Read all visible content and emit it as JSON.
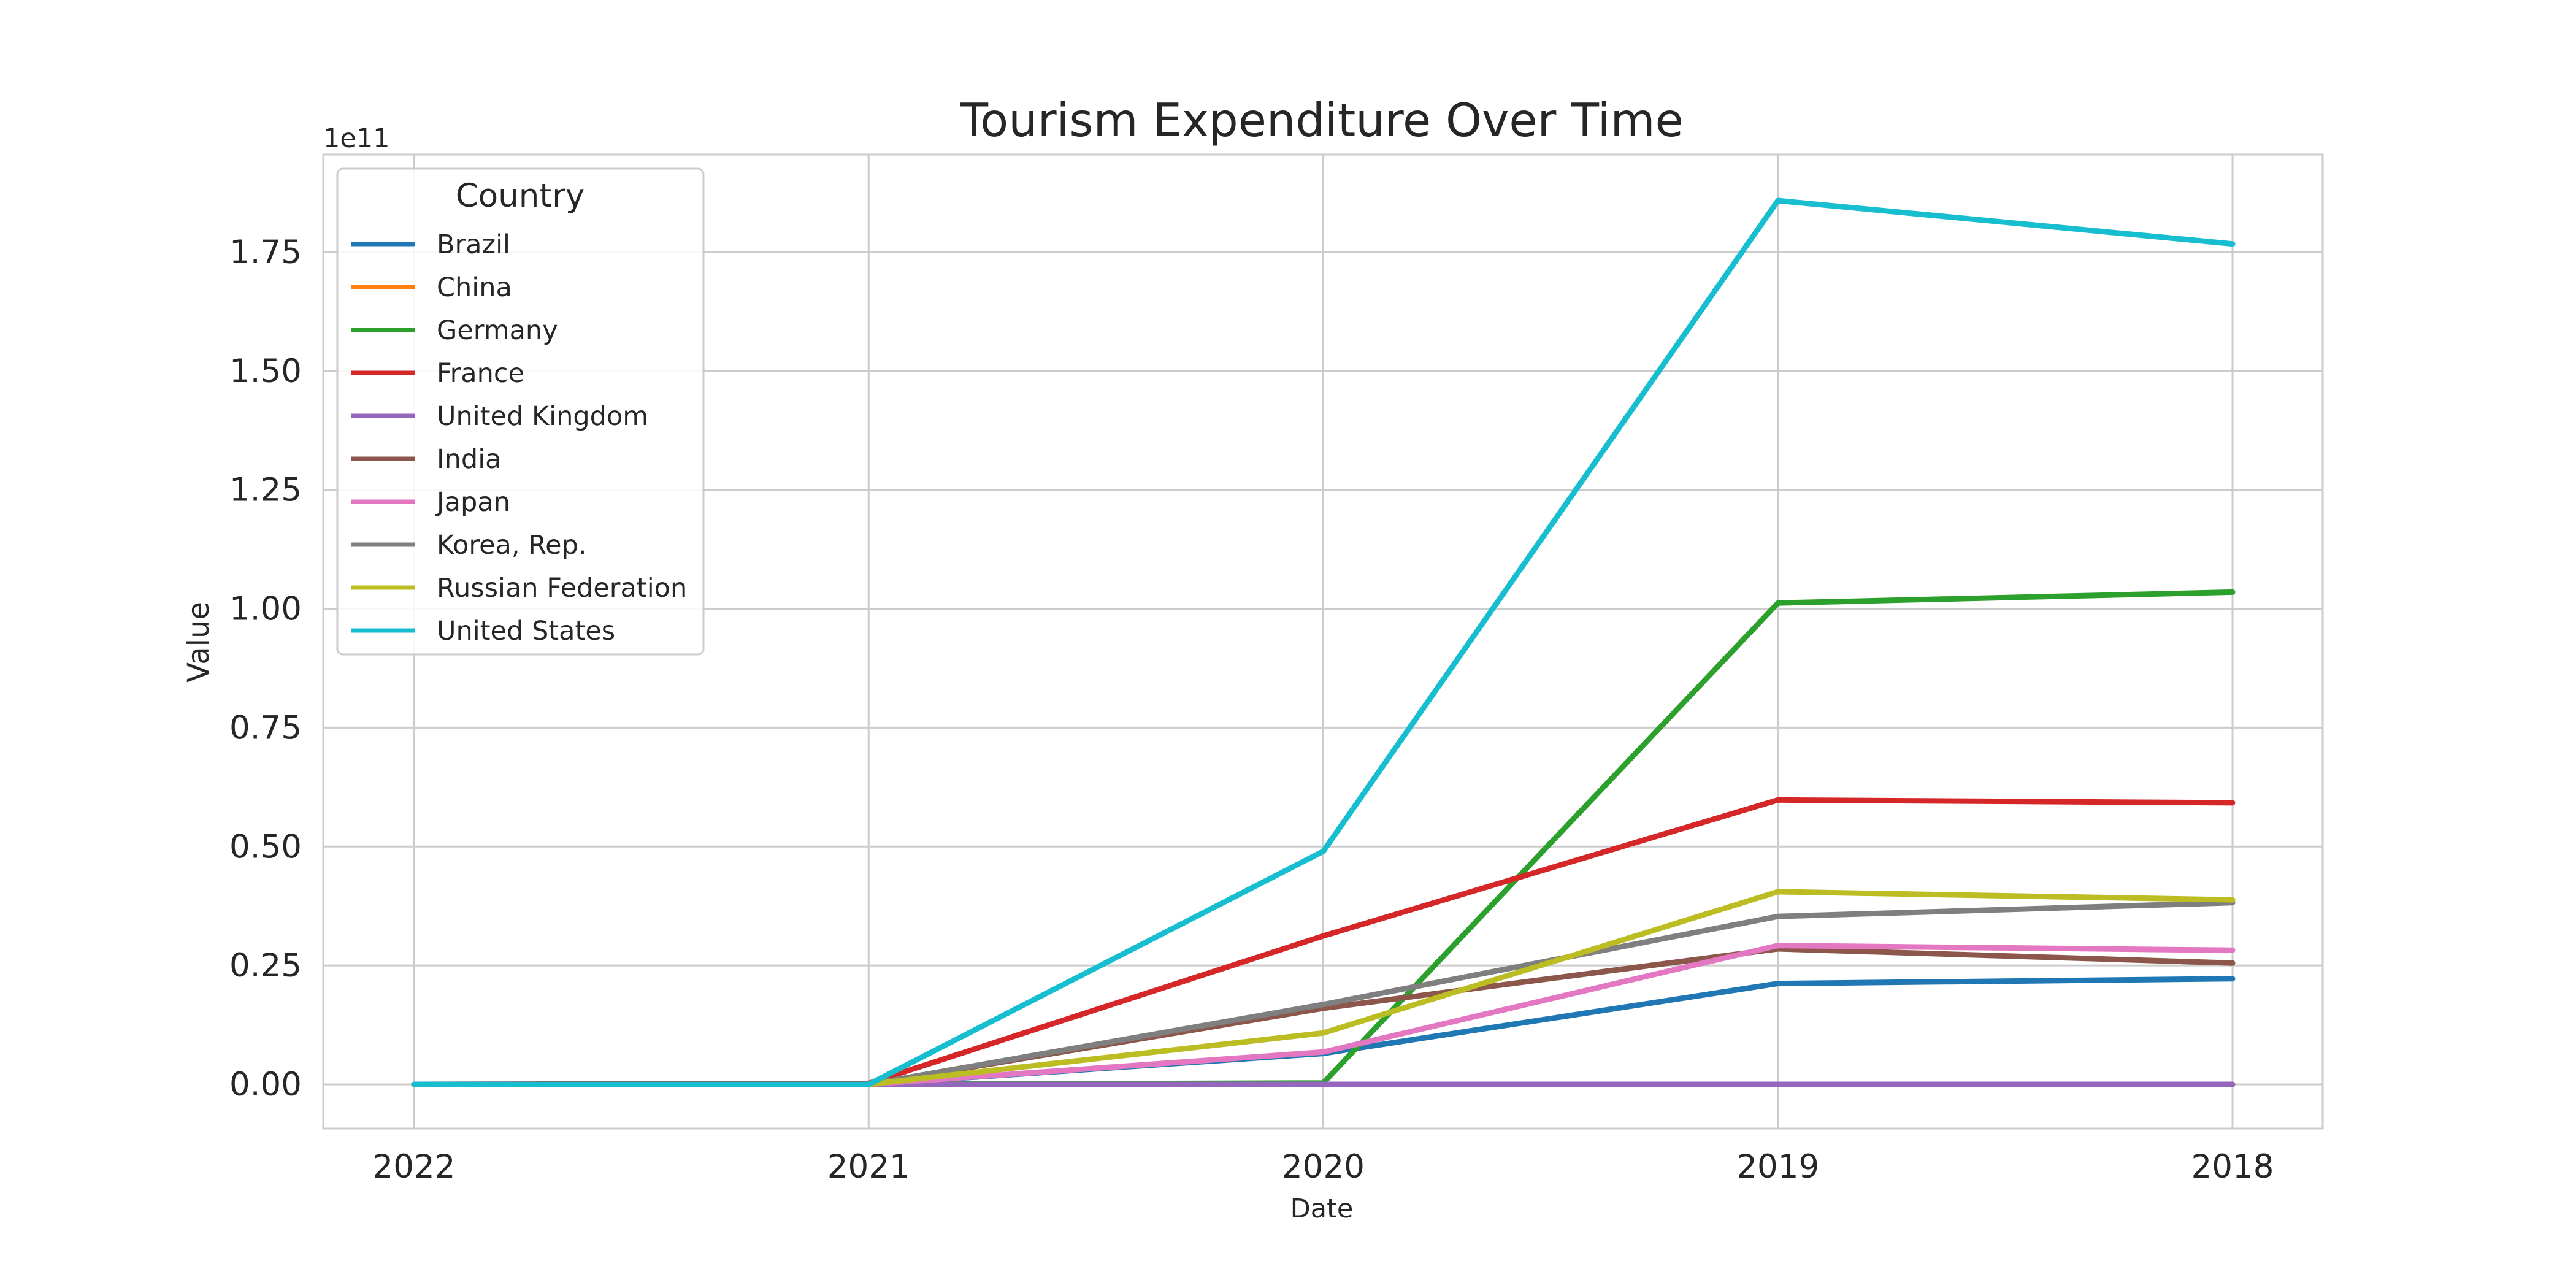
{
  "chart_data": {
    "type": "line",
    "title": "Tourism Expenditure Over Time",
    "xlabel": "Date",
    "ylabel": "Value",
    "y_offset_label": "1e11",
    "x": [
      "2022",
      "2021",
      "2020",
      "2019",
      "2018"
    ],
    "y_ticks": [
      0,
      0.25,
      0.5,
      0.75,
      1.0,
      1.25,
      1.5,
      1.75
    ],
    "y_tick_labels": [
      "0.00",
      "0.25",
      "0.50",
      "0.75",
      "1.00",
      "1.25",
      "1.50",
      "1.75"
    ],
    "ylim": [
      -0.09,
      1.95
    ],
    "y_multiplier": 100000000000.0,
    "grid": true,
    "legend": {
      "title": "Country",
      "position": "top-left"
    },
    "series": [
      {
        "name": "Brazil",
        "color": "#1f77b4",
        "values": [
          0,
          0,
          0.065,
          0.212,
          0.222
        ]
      },
      {
        "name": "China",
        "color": "#ff7f0e",
        "values": [
          0,
          0,
          0,
          0,
          0
        ]
      },
      {
        "name": "Germany",
        "color": "#2ca02c",
        "values": [
          0,
          0,
          0.003,
          1.012,
          1.035
        ]
      },
      {
        "name": "France",
        "color": "#d62728",
        "values": [
          0,
          0.002,
          0.312,
          0.598,
          0.592
        ]
      },
      {
        "name": "United Kingdom",
        "color": "#9467bd",
        "values": [
          0,
          0,
          0,
          0,
          0
        ]
      },
      {
        "name": "India",
        "color": "#8c564b",
        "values": [
          0,
          0,
          0.16,
          0.285,
          0.255
        ]
      },
      {
        "name": "Japan",
        "color": "#e377c2",
        "values": [
          0,
          0,
          0.068,
          0.292,
          0.282
        ]
      },
      {
        "name": "Korea, Rep.",
        "color": "#7f7f7f",
        "values": [
          0,
          0,
          0.168,
          0.353,
          0.382
        ]
      },
      {
        "name": "Russian Federation",
        "color": "#bcbd22",
        "values": [
          0,
          0,
          0.108,
          0.405,
          0.388
        ]
      },
      {
        "name": "United States",
        "color": "#17becf",
        "values": [
          0,
          0,
          0.49,
          1.858,
          1.767
        ]
      }
    ]
  }
}
